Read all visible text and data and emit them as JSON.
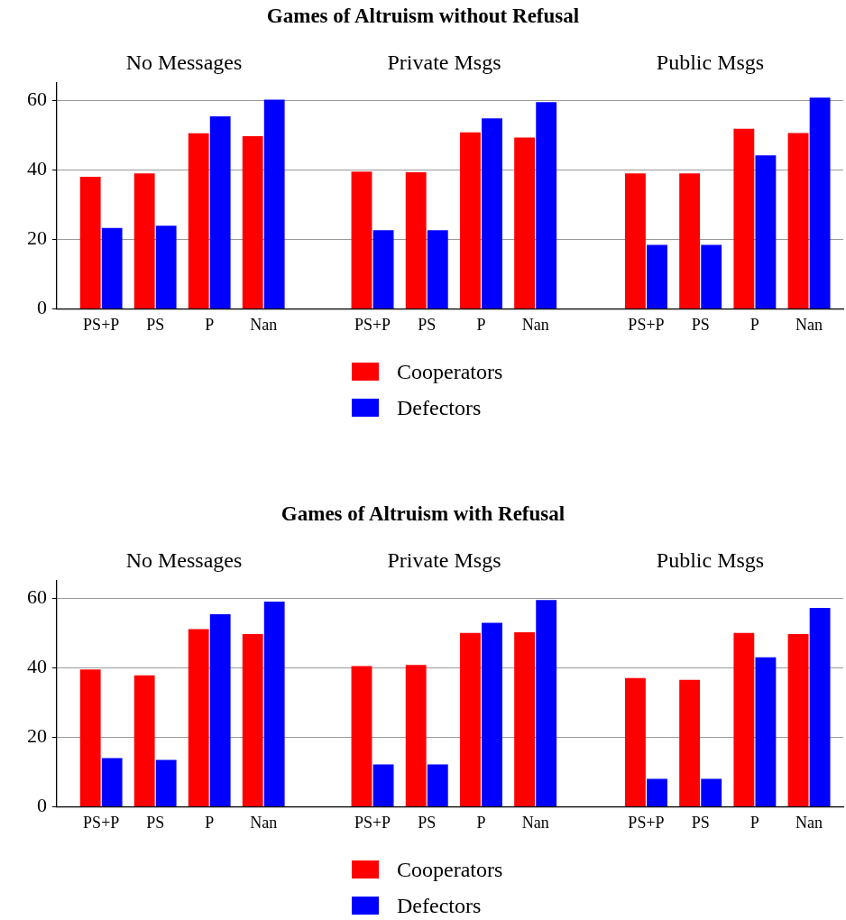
{
  "chart_data": [
    {
      "type": "bar",
      "subtitle": "No Messages",
      "categories": [
        "PS+P",
        "PS",
        "P",
        "Nan"
      ],
      "series": [
        {
          "color": "#ff0000",
          "values": [
            38,
            39,
            50.5,
            49.7
          ]
        },
        {
          "color": "#0000ff",
          "values": [
            23.3,
            23.9,
            55.4,
            60.2
          ]
        }
      ],
      "ylim": [
        0,
        65
      ],
      "yticks": [
        0,
        20,
        40,
        60
      ],
      "grid": "y"
    },
    {
      "type": "bar",
      "title": "Games of Altruism without Refusal",
      "subtitle": "Private Msgs",
      "categories": [
        "PS+P",
        "PS",
        "P",
        "Nan"
      ],
      "series": [
        {
          "name": "Cooperators",
          "color": "#ff0000",
          "values": [
            39.5,
            39.3,
            50.8,
            49.3
          ]
        },
        {
          "name": "Defectors",
          "color": "#0000ff",
          "values": [
            22.6,
            22.6,
            54.8,
            59.5
          ]
        }
      ],
      "ylim": [
        0,
        60
      ],
      "yticks": [
        0,
        20,
        40,
        60
      ],
      "grid": "y",
      "legend": "bottom",
      "tick_labels": "x"
    },
    {
      "type": "bar",
      "subtitle": "Public Msgs",
      "categories": [
        "PS+P",
        "PS",
        "P",
        "Nan"
      ],
      "series": [
        {
          "color": "#ff0000",
          "values": [
            39,
            39,
            51.8,
            50.6
          ]
        },
        {
          "color": "#0000ff",
          "values": [
            18.4,
            18.4,
            44.2,
            60.8
          ]
        }
      ],
      "ylim": [
        0,
        61
      ],
      "yticks": [
        0,
        20,
        40,
        60
      ],
      "grid": "y",
      "tick_labels": "x"
    },
    {
      "type": "bar",
      "subtitle": "No Messages",
      "categories": [
        "PS+P",
        "PS",
        "P",
        "Nan"
      ],
      "series": [
        {
          "color": "#ff0000",
          "values": [
            39.5,
            37.8,
            51.1,
            49.7
          ]
        },
        {
          "color": "#0000ff",
          "values": [
            14,
            13.5,
            55.4,
            59
          ]
        }
      ],
      "ylim": [
        0,
        65
      ],
      "yticks": [
        0,
        20,
        40,
        60
      ],
      "grid": "y"
    },
    {
      "type": "bar",
      "title": "Games of Altruism with Refusal",
      "subtitle": "Private Msgs",
      "categories": [
        "PS+P",
        "PS",
        "P",
        "Nan"
      ],
      "series": [
        {
          "name": "Cooperators",
          "color": "#ff0000",
          "values": [
            40.5,
            40.8,
            50,
            50.2
          ]
        },
        {
          "name": "Defectors",
          "color": "#0000ff",
          "values": [
            12.2,
            12.2,
            52.9,
            59.5
          ]
        }
      ],
      "ylim": [
        0,
        60
      ],
      "yticks": [
        0,
        20,
        40,
        60
      ],
      "grid": "y",
      "legend": "bottom",
      "tick_labels": "x"
    },
    {
      "type": "bar",
      "subtitle": "Public Msgs",
      "categories": [
        "PS+P",
        "PS",
        "P",
        "Nan"
      ],
      "series": [
        {
          "color": "#ff0000",
          "values": [
            37,
            36.5,
            50,
            49.7
          ]
        },
        {
          "color": "#0000ff",
          "values": [
            8,
            8,
            43,
            57.2
          ]
        }
      ],
      "ylim": [
        0,
        60
      ],
      "yticks": [
        0,
        20,
        40,
        60
      ],
      "grid": "y",
      "tick_labels": "x"
    }
  ]
}
